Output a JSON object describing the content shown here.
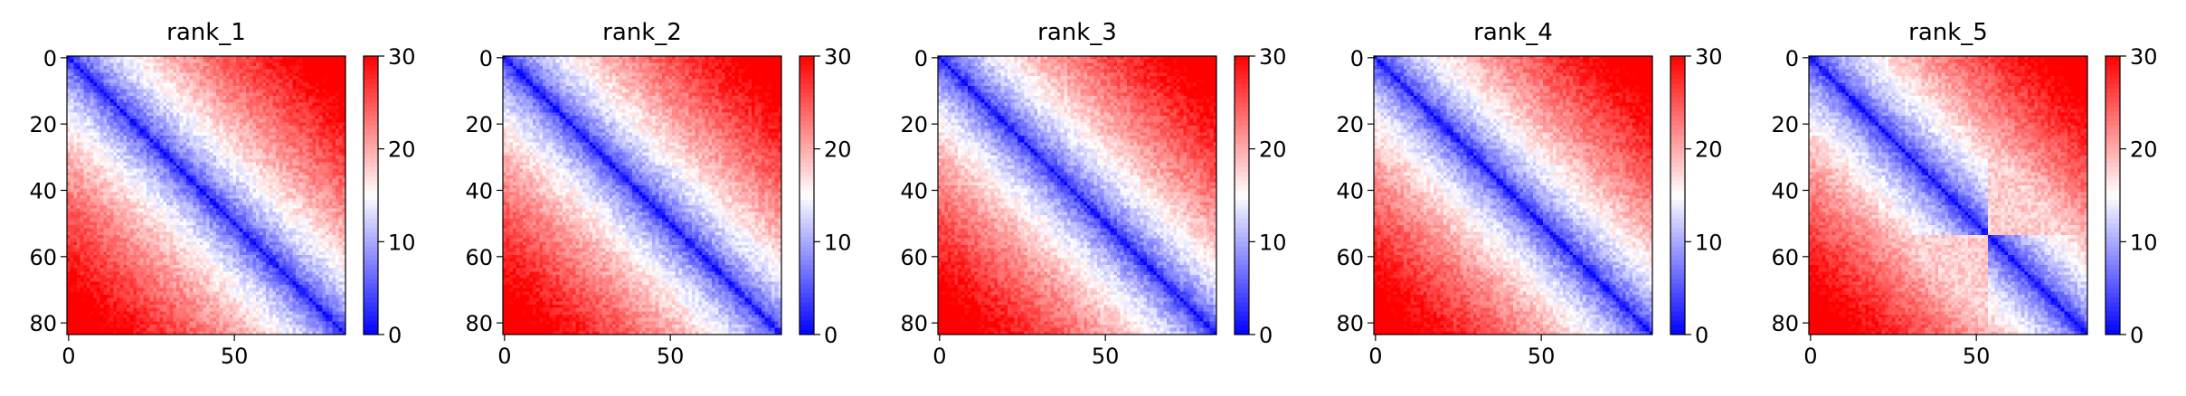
{
  "chart_data": [
    {
      "type": "heatmap",
      "title": "rank_1",
      "n": 84,
      "x_ticks": [
        0,
        50
      ],
      "y_ticks": [
        0,
        20,
        40,
        60,
        80
      ],
      "colorbar": {
        "min": 0,
        "max": 30,
        "ticks": [
          0,
          10,
          20,
          30
        ],
        "colormap": "bwr",
        "colors": [
          "#0000ff",
          "#ffffff",
          "#ff0000"
        ]
      },
      "pattern": {
        "domains": [
          [
            0,
            84
          ]
        ],
        "inter_domain": 0,
        "noise_seed": 11
      }
    },
    {
      "type": "heatmap",
      "title": "rank_2",
      "n": 84,
      "x_ticks": [
        0,
        50
      ],
      "y_ticks": [
        0,
        20,
        40,
        60,
        80
      ],
      "colorbar": {
        "min": 0,
        "max": 30,
        "ticks": [
          0,
          10,
          20,
          30
        ],
        "colormap": "bwr",
        "colors": [
          "#0000ff",
          "#ffffff",
          "#ff0000"
        ]
      },
      "pattern": {
        "domains": [
          [
            0,
            84
          ]
        ],
        "inter_domain": 0,
        "noise_seed": 23
      }
    },
    {
      "type": "heatmap",
      "title": "rank_3",
      "n": 84,
      "x_ticks": [
        0,
        50
      ],
      "y_ticks": [
        0,
        20,
        40,
        60,
        80
      ],
      "colorbar": {
        "min": 0,
        "max": 30,
        "ticks": [
          0,
          10,
          20,
          30
        ],
        "colormap": "bwr",
        "colors": [
          "#0000ff",
          "#ffffff",
          "#ff0000"
        ]
      },
      "pattern": {
        "domains": [
          [
            0,
            84
          ]
        ],
        "inter_domain": 0,
        "noise_seed": 37
      }
    },
    {
      "type": "heatmap",
      "title": "rank_4",
      "n": 84,
      "x_ticks": [
        0,
        50
      ],
      "y_ticks": [
        0,
        20,
        40,
        60,
        80
      ],
      "colorbar": {
        "min": 0,
        "max": 30,
        "ticks": [
          0,
          10,
          20,
          30
        ],
        "colormap": "bwr",
        "colors": [
          "#0000ff",
          "#ffffff",
          "#ff0000"
        ]
      },
      "pattern": {
        "domains": [
          [
            0,
            84
          ]
        ],
        "inter_domain": 0,
        "noise_seed": 41
      }
    },
    {
      "type": "heatmap",
      "title": "rank_5",
      "n": 84,
      "x_ticks": [
        0,
        50
      ],
      "y_ticks": [
        0,
        20,
        40,
        60,
        80
      ],
      "colorbar": {
        "min": 0,
        "max": 30,
        "ticks": [
          0,
          10,
          20,
          30
        ],
        "colormap": "bwr",
        "colors": [
          "#0000ff",
          "#ffffff",
          "#ff0000"
        ]
      },
      "pattern": {
        "domains": [
          [
            0,
            54
          ],
          [
            54,
            84
          ]
        ],
        "inter_domain": 18,
        "noise_seed": 53
      }
    }
  ]
}
